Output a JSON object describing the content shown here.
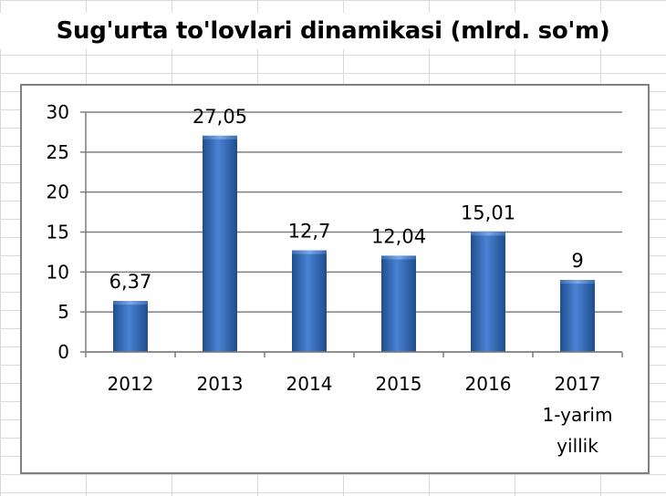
{
  "chart_data": {
    "type": "bar",
    "title": "Sug'urta to'lovlari dinamikasi (mlrd. so'm)",
    "categories": [
      [
        "2012"
      ],
      [
        "2013"
      ],
      [
        "2014"
      ],
      [
        "2015"
      ],
      [
        "2016"
      ],
      [
        "2017",
        "1-yarim",
        "yillik"
      ]
    ],
    "values": [
      6.37,
      27.05,
      12.7,
      12.04,
      15.01,
      9
    ],
    "data_labels": [
      "6,37",
      "27,05",
      "12,7",
      "12,04",
      "15,01",
      "9"
    ],
    "yticks": [
      "0",
      "5",
      "10",
      "15",
      "20",
      "25",
      "30"
    ],
    "ylim": [
      0,
      30
    ],
    "grid": true,
    "bar_color": "#3a6fc0"
  }
}
